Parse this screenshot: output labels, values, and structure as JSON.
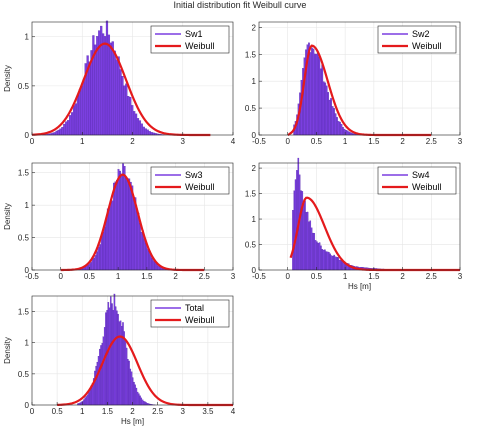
{
  "title": "Initial distribution fit Weibull curve",
  "colors": {
    "histogram": "#7b3fe0",
    "histogram_edge": "#4a20a0",
    "weibull": "#e41a1c",
    "grid": "#e6e6e6",
    "axis": "#262626"
  },
  "chart_data": [
    {
      "type": "histogram+line",
      "name": "panel-sw1",
      "xlim": [
        0,
        4
      ],
      "ylim": [
        0,
        1.15
      ],
      "xticks": [
        "0",
        "1",
        "2",
        "3",
        "4"
      ],
      "xtick_values": [
        0,
        1,
        2,
        3,
        4
      ],
      "yticks": [
        "0",
        "0.5",
        "1"
      ],
      "ytick_values": [
        0,
        0.5,
        1
      ],
      "xlabel": "",
      "ylabel": "Density",
      "legend": [
        "Sw1",
        "Weibull"
      ],
      "legend_position": "top-right",
      "grid": true,
      "hist": {
        "range": [
          0.2,
          2.9
        ],
        "bins": 70,
        "mean": 1.42,
        "sd": 0.36,
        "peak": 1.08
      },
      "weibull": {
        "range": [
          0.0,
          3.55
        ],
        "mean": 1.45,
        "sd": 0.42,
        "peak": 0.93
      }
    },
    {
      "type": "histogram+line",
      "name": "panel-sw2",
      "xlim": [
        -0.5,
        3
      ],
      "ylim": [
        0,
        2.1
      ],
      "xticks": [
        "-0.5",
        "0",
        "0.5",
        "1",
        "1.5",
        "2",
        "2.5",
        "3"
      ],
      "xtick_values": [
        -0.5,
        0,
        0.5,
        1,
        1.5,
        2,
        2.5,
        3
      ],
      "yticks": [
        "0",
        "0.5",
        "1",
        "1.5",
        "2"
      ],
      "ytick_values": [
        0,
        0.5,
        1,
        1.5,
        2
      ],
      "xlabel": "",
      "ylabel": "",
      "legend": [
        "Sw2",
        "Weibull"
      ],
      "legend_position": "top-right",
      "grid": true,
      "hist": {
        "range": [
          0.1,
          1.9
        ],
        "bins": 70,
        "mean": 0.38,
        "sd": 0.23,
        "peak": 1.7,
        "skew": true
      },
      "weibull": {
        "range": [
          0.0,
          2.5
        ],
        "mean": 0.42,
        "sd": 0.24,
        "peak": 1.66,
        "skew": true
      }
    },
    {
      "type": "histogram+line",
      "name": "panel-sw3",
      "xlim": [
        -0.5,
        3
      ],
      "ylim": [
        0,
        1.65
      ],
      "xticks": [
        "-0.5",
        "0",
        "0.5",
        "1",
        "1.5",
        "2",
        "2.5",
        "3"
      ],
      "xtick_values": [
        -0.5,
        0,
        0.5,
        1,
        1.5,
        2,
        2.5,
        3
      ],
      "yticks": [
        "0",
        "0.5",
        "1",
        "1.5"
      ],
      "ytick_values": [
        0,
        0.5,
        1,
        1.5
      ],
      "xlabel": "",
      "ylabel": "Density",
      "legend": [
        "Sw3",
        "Weibull"
      ],
      "legend_position": "top-right",
      "grid": true,
      "hist": {
        "range": [
          0.3,
          1.9
        ],
        "bins": 60,
        "mean": 1.08,
        "sd": 0.25,
        "peak": 1.5
      },
      "weibull": {
        "range": [
          0.0,
          2.5
        ],
        "mean": 1.08,
        "sd": 0.26,
        "peak": 1.47
      }
    },
    {
      "type": "histogram+line",
      "name": "panel-sw4",
      "xlim": [
        -0.5,
        3
      ],
      "ylim": [
        0,
        2.1
      ],
      "xticks": [
        "-0.5",
        "0",
        "0.5",
        "1",
        "1.5",
        "2",
        "2.5",
        "3"
      ],
      "xtick_values": [
        -0.5,
        0,
        0.5,
        1,
        1.5,
        2,
        2.5,
        3
      ],
      "yticks": [
        "0",
        "0.5",
        "1",
        "1.5",
        "2"
      ],
      "ytick_values": [
        0,
        0.5,
        1,
        1.5,
        2
      ],
      "xlabel": "Hs [m]",
      "ylabel": "",
      "legend": [
        "Sw4",
        "Weibull"
      ],
      "legend_position": "top-right",
      "grid": true,
      "hist": {
        "range": [
          0.08,
          1.7
        ],
        "bins": 70,
        "mean": 0.15,
        "sd": 0.28,
        "peak": 2.0,
        "skew": true,
        "decay": true
      },
      "weibull": {
        "range": [
          0.05,
          3.0
        ],
        "mean": 0.33,
        "sd": 0.27,
        "peak": 1.42,
        "skew": true
      }
    },
    {
      "type": "histogram+line",
      "name": "panel-total",
      "xlim": [
        0,
        4
      ],
      "ylim": [
        0,
        1.75
      ],
      "xticks": [
        "0",
        "0.5",
        "1",
        "1.5",
        "2",
        "2.5",
        "3",
        "3.5",
        "4"
      ],
      "xtick_values": [
        0,
        0.5,
        1,
        1.5,
        2,
        2.5,
        3,
        3.5,
        4
      ],
      "yticks": [
        "0",
        "0.5",
        "1",
        "1.5"
      ],
      "ytick_values": [
        0,
        0.5,
        1,
        1.5
      ],
      "xlabel": "Hs [m]",
      "ylabel": "Density",
      "legend": [
        "Total",
        "Weibull"
      ],
      "legend_position": "top-right",
      "grid": true,
      "hist": {
        "range": [
          0.9,
          2.6
        ],
        "bins": 70,
        "mean": 1.62,
        "sd": 0.24,
        "peak": 1.66
      },
      "weibull": {
        "range": [
          0.5,
          4.0
        ],
        "mean": 1.75,
        "sd": 0.35,
        "peak": 1.1
      }
    }
  ]
}
